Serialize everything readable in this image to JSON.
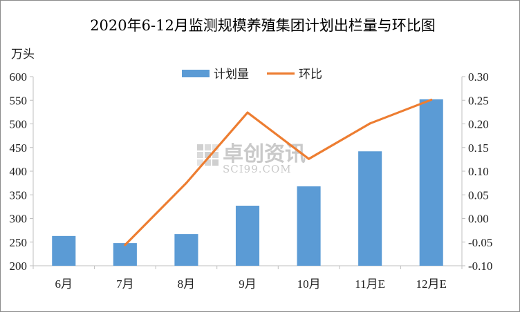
{
  "chart_data": {
    "type": "bar+line",
    "title": "2020年6-12月监测规模养殖集团计划出栏量与环比图",
    "left_unit": "万头",
    "categories": [
      "6月",
      "7月",
      "8月",
      "9月",
      "10月",
      "11月E",
      "12月E"
    ],
    "series": [
      {
        "name": "计划量",
        "type": "bar",
        "axis": "left",
        "color": "#5b9bd5",
        "values": [
          263,
          248,
          267,
          327,
          368,
          442,
          552
        ]
      },
      {
        "name": "环比",
        "type": "line",
        "axis": "right",
        "color": "#ed7d31",
        "values": [
          null,
          -0.056,
          0.075,
          0.224,
          0.126,
          0.201,
          0.251
        ]
      }
    ],
    "left_axis": {
      "ylim": [
        200,
        600
      ],
      "ticks": [
        "200",
        "250",
        "300",
        "350",
        "400",
        "450",
        "500",
        "550",
        "600"
      ],
      "tick_values": [
        200,
        250,
        300,
        350,
        400,
        450,
        500,
        550,
        600
      ]
    },
    "right_axis": {
      "ylim": [
        -0.1,
        0.3
      ],
      "ticks": [
        "-0.10",
        "-0.05",
        "0.00",
        "0.05",
        "0.10",
        "0.15",
        "0.20",
        "0.25",
        "0.30"
      ],
      "tick_values": [
        -0.1,
        -0.05,
        0.0,
        0.05,
        0.1,
        0.15,
        0.2,
        0.25,
        0.3
      ]
    },
    "legend_position": "top-center",
    "grid": false
  },
  "watermark": {
    "cn": "卓创资讯",
    "en": "SCI99.COM"
  }
}
